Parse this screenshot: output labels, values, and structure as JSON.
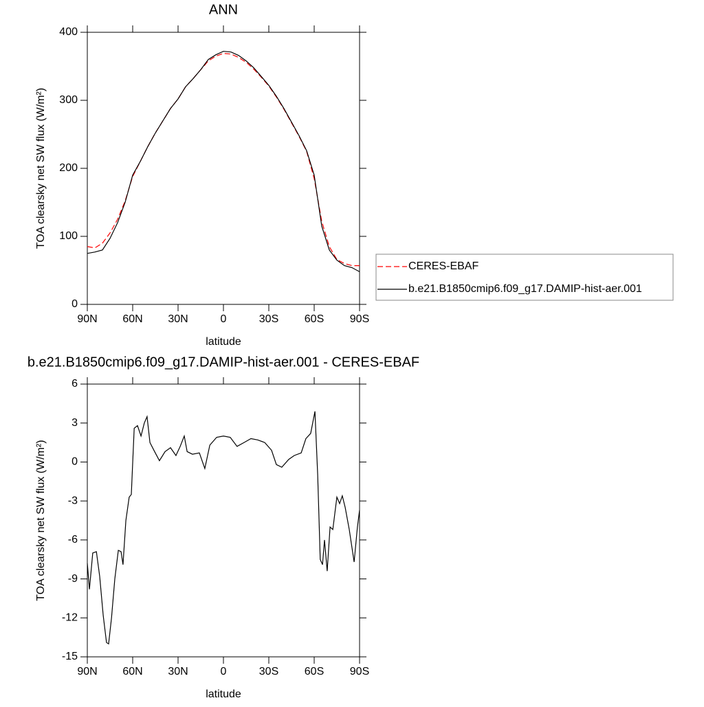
{
  "chart_data": [
    {
      "type": "line",
      "title": "ANN",
      "xlabel": "latitude",
      "ylabel": "TOA clearsky net SW flux (W/m²)",
      "x": [
        90,
        85,
        80,
        75,
        70,
        65,
        60,
        55,
        50,
        45,
        40,
        35,
        30,
        25,
        20,
        15,
        10,
        5,
        0,
        -5,
        -10,
        -15,
        -20,
        -25,
        -30,
        -35,
        -40,
        -45,
        -50,
        -55,
        -60,
        -65,
        -70,
        -75,
        -80,
        -85,
        -90
      ],
      "series": [
        {
          "name": "CERES-EBAF",
          "color": "#ff0000",
          "dash": true,
          "values": [
            85,
            83,
            90,
            105,
            125,
            152,
            188,
            210,
            232,
            252,
            270,
            288,
            302,
            320,
            332,
            345,
            358,
            365,
            369,
            368,
            363,
            356,
            346,
            334,
            321,
            305,
            287,
            267,
            247,
            225,
            185,
            122,
            85,
            66,
            60,
            57,
            57
          ]
        },
        {
          "name": "b.e21.B1850cmip6.f09_g17.DAMIP-hist-aer.001",
          "color": "#000000",
          "dash": false,
          "values": [
            75,
            77,
            80,
            97,
            120,
            150,
            190,
            210,
            232,
            252,
            270,
            288,
            302,
            320,
            332,
            345,
            360,
            367,
            372,
            371,
            366,
            358,
            348,
            335,
            322,
            306,
            288,
            268,
            248,
            226,
            190,
            115,
            80,
            65,
            57,
            54,
            48
          ]
        }
      ],
      "xlim": [
        90,
        -90
      ],
      "xticks": [
        {
          "value": 90,
          "label": "90N"
        },
        {
          "value": 60,
          "label": "60N"
        },
        {
          "value": 30,
          "label": "30N"
        },
        0,
        {
          "value": -30,
          "label": "30S"
        },
        {
          "value": -60,
          "label": "60S"
        },
        {
          "value": -90,
          "label": "90S"
        }
      ],
      "ylim": [
        0,
        400
      ],
      "yticks": [
        0,
        100,
        200,
        300,
        400
      ],
      "legend": "right"
    },
    {
      "type": "line",
      "title": "b.e21.B1850cmip6.f09_g17.DAMIP-hist-aer.001 - CERES-EBAF",
      "xlabel": "latitude",
      "ylabel": "TOA clearsky net SW flux (W/m²)",
      "x": [
        90,
        88.6,
        86.4,
        84,
        81.8,
        79.5,
        77.3,
        75.9,
        74,
        71.8,
        69.5,
        67.7,
        66.4,
        64.5,
        62.3,
        60.9,
        59,
        56.8,
        54.5,
        52.3,
        50.5,
        48.6,
        45.5,
        42.3,
        38.6,
        35,
        31.4,
        28.6,
        25.9,
        24,
        20.5,
        15.9,
        12.3,
        9,
        4.5,
        0,
        -4.5,
        -9,
        -13.6,
        -18.2,
        -22.7,
        -27.3,
        -31.8,
        -35,
        -38.6,
        -43.2,
        -46.8,
        -51.4,
        -54.5,
        -57.7,
        -60.5,
        -62.3,
        -64,
        -65.5,
        -66.8,
        -68.6,
        -70.5,
        -72.3,
        -75,
        -76.8,
        -78.6,
        -80.5,
        -83.2,
        -86.4,
        -88.6,
        -90
      ],
      "series": [
        {
          "color": "#000000",
          "dash": false,
          "values": [
            -7.8,
            -9.8,
            -7,
            -6.9,
            -8.8,
            -11.8,
            -13.9,
            -14,
            -12,
            -9,
            -6.8,
            -6.9,
            -7.9,
            -4.5,
            -2.7,
            -2.5,
            2.6,
            2.8,
            2,
            3,
            3.5,
            1.5,
            0.8,
            0.1,
            0.8,
            1.1,
            0.5,
            1.2,
            2,
            0.8,
            0.6,
            0.7,
            -0.5,
            1.3,
            1.9,
            2,
            1.9,
            1.2,
            1.5,
            1.8,
            1.7,
            1.5,
            0.9,
            -0.2,
            -0.4,
            0.2,
            0.5,
            0.7,
            1.8,
            2.2,
            3.9,
            -1,
            -7.5,
            -7.9,
            -6,
            -8.4,
            -5,
            -5.2,
            -2.7,
            -3.2,
            -2.6,
            -3.5,
            -5.2,
            -7.7,
            -5,
            -3.7
          ]
        }
      ],
      "xlim": [
        90,
        -90
      ],
      "xticks": [
        {
          "value": 90,
          "label": "90N"
        },
        {
          "value": 60,
          "label": "60N"
        },
        {
          "value": 30,
          "label": "30N"
        },
        0,
        {
          "value": -30,
          "label": "30S"
        },
        {
          "value": -60,
          "label": "60S"
        },
        {
          "value": -90,
          "label": "90S"
        }
      ],
      "ylim": [
        -15,
        6
      ],
      "yticks": [
        -15,
        -12,
        -9,
        -6,
        -3,
        0,
        3,
        6
      ]
    }
  ]
}
